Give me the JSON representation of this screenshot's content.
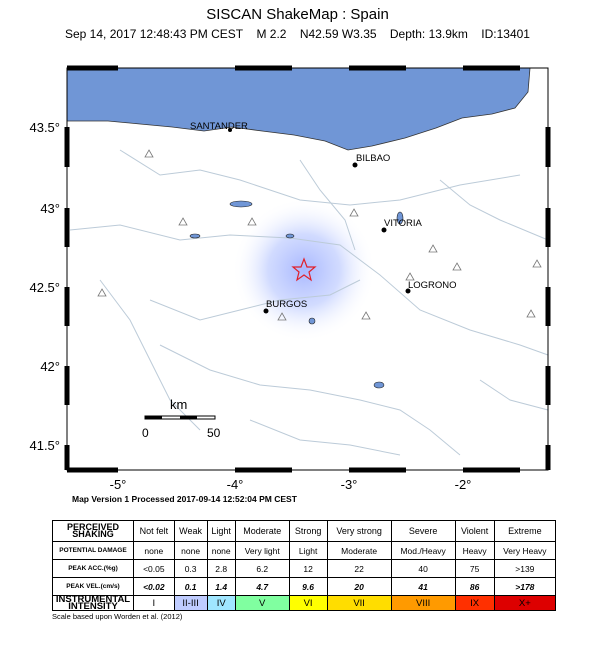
{
  "header": {
    "title": "SISCAN ShakeMap : Spain",
    "event": [
      "Sep 14, 2017 12:48:43 PM CEST",
      "M 2.2",
      "N42.59 W3.35",
      "Depth: 13.9km",
      "ID:13401"
    ]
  },
  "map": {
    "lat_labels": [
      "43.5°",
      "43°",
      "42.5°",
      "42°",
      "41.5°"
    ],
    "lon_labels": [
      "-5°",
      "-4°",
      "-3°",
      "-2°"
    ],
    "cities": [
      "SANTANDER",
      "BILBAO",
      "VITORIA",
      "LOGRONO",
      "BURGOS"
    ],
    "scale": {
      "unit": "km",
      "start": "0",
      "end": "50"
    },
    "version": "Map Version 1 Processed 2017-09-14 12:52:04 PM CEST"
  },
  "legend": {
    "rows": [
      {
        "label": "PERCEIVED SHAKING",
        "cells": [
          "Not felt",
          "Weak",
          "Light",
          "Moderate",
          "Strong",
          "Very strong",
          "Severe",
          "Violent",
          "Extreme"
        ]
      },
      {
        "label": "POTENTIAL DAMAGE",
        "cells": [
          "none",
          "none",
          "none",
          "Very light",
          "Light",
          "Moderate",
          "Mod./Heavy",
          "Heavy",
          "Very Heavy"
        ]
      },
      {
        "label": "PEAK ACC.(%g)",
        "cells": [
          "<0.05",
          "0.3",
          "2.8",
          "6.2",
          "12",
          "22",
          "40",
          "75",
          ">139"
        ]
      },
      {
        "label": "PEAK VEL.(cm/s)",
        "cells": [
          "<0.02",
          "0.1",
          "1.4",
          "4.7",
          "9.6",
          "20",
          "41",
          "86",
          ">178"
        ]
      },
      {
        "label": "INSTRUMENTAL INTENSITY",
        "cells": [
          "I",
          "II-III",
          "IV",
          "V",
          "VI",
          "VII",
          "VIII",
          "IX",
          "X+"
        ]
      }
    ],
    "footnote": "Scale based upon Worden et al. (2012)"
  }
}
